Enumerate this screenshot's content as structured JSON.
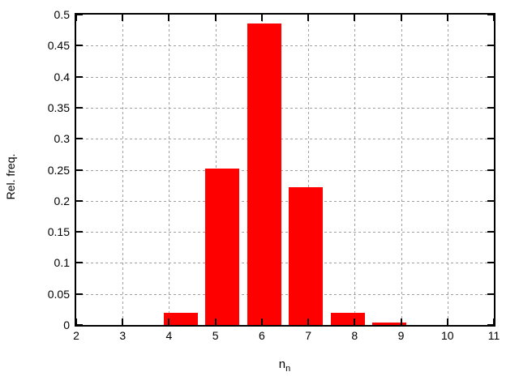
{
  "chart_data": {
    "type": "bar",
    "title": "",
    "xlabel": "n_n",
    "xlabel_base": "n",
    "xlabel_sub": "n",
    "ylabel": "Rel. freq.",
    "xlim": [
      2,
      11
    ],
    "ylim": [
      0,
      0.5
    ],
    "x_tick_values": [
      2,
      3,
      4,
      5,
      6,
      7,
      8,
      9,
      10,
      11
    ],
    "x_tick_labels": [
      "2",
      "3",
      "4",
      "5",
      "6",
      "7",
      "8",
      "9",
      "10",
      "11"
    ],
    "y_tick_values": [
      0,
      0.05,
      0.1,
      0.15,
      0.2,
      0.25,
      0.3,
      0.35,
      0.4,
      0.45,
      0.5
    ],
    "y_tick_labels": [
      "0",
      "0.05",
      "0.1",
      "0.15",
      "0.2",
      "0.25",
      "0.3",
      "0.35",
      "0.4",
      "0.45",
      "0.5"
    ],
    "grid": "dashed gray at every major tick, behind data",
    "legend": "none",
    "bar_width": 0.73,
    "bars": [
      {
        "x": 4.25,
        "freq": 0.019
      },
      {
        "x": 5.15,
        "freq": 0.252
      },
      {
        "x": 6.05,
        "freq": 0.485
      },
      {
        "x": 6.95,
        "freq": 0.222
      },
      {
        "x": 7.85,
        "freq": 0.02
      },
      {
        "x": 8.75,
        "freq": 0.004
      }
    ],
    "colors": {
      "bar": "#ff0000",
      "axis": "#000000",
      "grid": "#a0a0a0",
      "background": "#ffffff",
      "text": "#000000"
    }
  }
}
